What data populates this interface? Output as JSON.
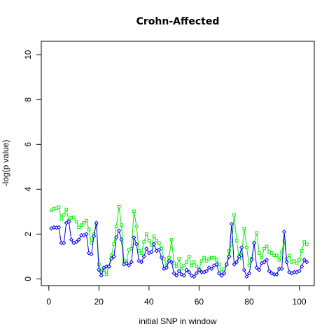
{
  "chart_data": {
    "type": "line",
    "title": "Crohn-Affected",
    "xlabel": "initial SNP in window",
    "ylabel": "-log(p value)",
    "xlim": [
      -3,
      106
    ],
    "ylim": [
      -0.3,
      10.6
    ],
    "xticks": [
      0,
      20,
      40,
      60,
      80,
      100
    ],
    "yticks": [
      0,
      2,
      4,
      6,
      8,
      10
    ],
    "x": [
      1,
      2,
      3,
      4,
      5,
      6,
      7,
      8,
      9,
      10,
      11,
      12,
      13,
      14,
      15,
      16,
      17,
      18,
      19,
      20,
      21,
      22,
      23,
      24,
      25,
      26,
      27,
      28,
      29,
      30,
      31,
      32,
      33,
      34,
      35,
      36,
      37,
      38,
      39,
      40,
      41,
      42,
      43,
      44,
      45,
      46,
      47,
      48,
      49,
      50,
      51,
      52,
      53,
      54,
      55,
      56,
      57,
      58,
      59,
      60,
      61,
      62,
      63,
      64,
      65,
      66,
      67,
      68,
      69,
      70,
      71,
      72,
      73,
      74,
      75,
      76,
      77,
      78,
      79,
      80,
      81,
      82,
      83,
      84,
      85,
      86,
      87,
      88,
      89,
      90,
      91,
      92,
      93,
      94,
      95,
      96,
      97,
      98,
      99,
      100,
      101,
      102,
      103
    ],
    "series": [
      {
        "color": "#00ee00",
        "marker": "square",
        "values": [
          3.05,
          3.12,
          3.15,
          3.2,
          2.65,
          2.85,
          3.1,
          2.6,
          2.72,
          2.75,
          2.55,
          2.3,
          2.4,
          2.5,
          2.6,
          2.2,
          1.6,
          2.0,
          2.45,
          0.65,
          0.3,
          0.4,
          0.2,
          0.55,
          1.05,
          1.55,
          2.35,
          3.22,
          2.4,
          0.8,
          0.8,
          1.3,
          1.35,
          3.02,
          2.35,
          1.25,
          1.15,
          1.65,
          2.0,
          1.7,
          1.5,
          1.9,
          1.7,
          1.6,
          1.35,
          0.9,
          0.6,
          0.95,
          1.75,
          0.7,
          0.55,
          0.9,
          0.45,
          0.6,
          0.75,
          1.0,
          0.6,
          0.75,
          0.55,
          0.45,
          0.8,
          0.95,
          0.8,
          0.9,
          0.95,
          0.95,
          0.85,
          0.65,
          0.3,
          0.45,
          0.65,
          1.25,
          1.55,
          2.85,
          1.7,
          0.9,
          1.05,
          2.25,
          1.4,
          0.6,
          0.9,
          1.6,
          2.05,
          1.15,
          0.95,
          1.35,
          1.45,
          1.2,
          1.15,
          1.05,
          1.05,
          0.85,
          1.2,
          1.7,
          0.9,
          1.05,
          0.75,
          0.8,
          0.7,
          0.85,
          1.25,
          1.65,
          1.55
        ]
      },
      {
        "color": "#0000ee",
        "marker": "diamond",
        "values": [
          2.25,
          2.3,
          2.28,
          2.3,
          1.6,
          1.6,
          2.5,
          2.55,
          1.75,
          1.6,
          1.65,
          1.75,
          1.95,
          1.95,
          2.0,
          1.15,
          1.1,
          1.9,
          2.5,
          0.4,
          0.15,
          0.5,
          0.55,
          0.55,
          0.9,
          1.0,
          1.85,
          2.15,
          1.75,
          0.65,
          0.7,
          0.6,
          0.75,
          1.85,
          1.55,
          0.8,
          0.75,
          1.0,
          1.35,
          1.15,
          1.2,
          1.55,
          1.25,
          1.3,
          0.95,
          0.45,
          0.5,
          0.8,
          0.75,
          0.25,
          0.15,
          0.35,
          0.2,
          0.15,
          0.4,
          0.3,
          0.15,
          0.1,
          0.25,
          0.4,
          0.3,
          0.3,
          0.35,
          0.5,
          0.45,
          0.6,
          0.65,
          0.25,
          0.15,
          0.25,
          0.65,
          1.0,
          2.45,
          0.65,
          0.75,
          1.0,
          1.4,
          0.4,
          0.1,
          0.25,
          0.85,
          1.6,
          0.5,
          0.4,
          0.7,
          0.75,
          0.85,
          0.35,
          0.25,
          0.2,
          0.2,
          0.45,
          0.45,
          2.1,
          0.75,
          0.3,
          0.25,
          0.3,
          0.3,
          0.35,
          0.55,
          0.85,
          0.75
        ]
      }
    ]
  }
}
